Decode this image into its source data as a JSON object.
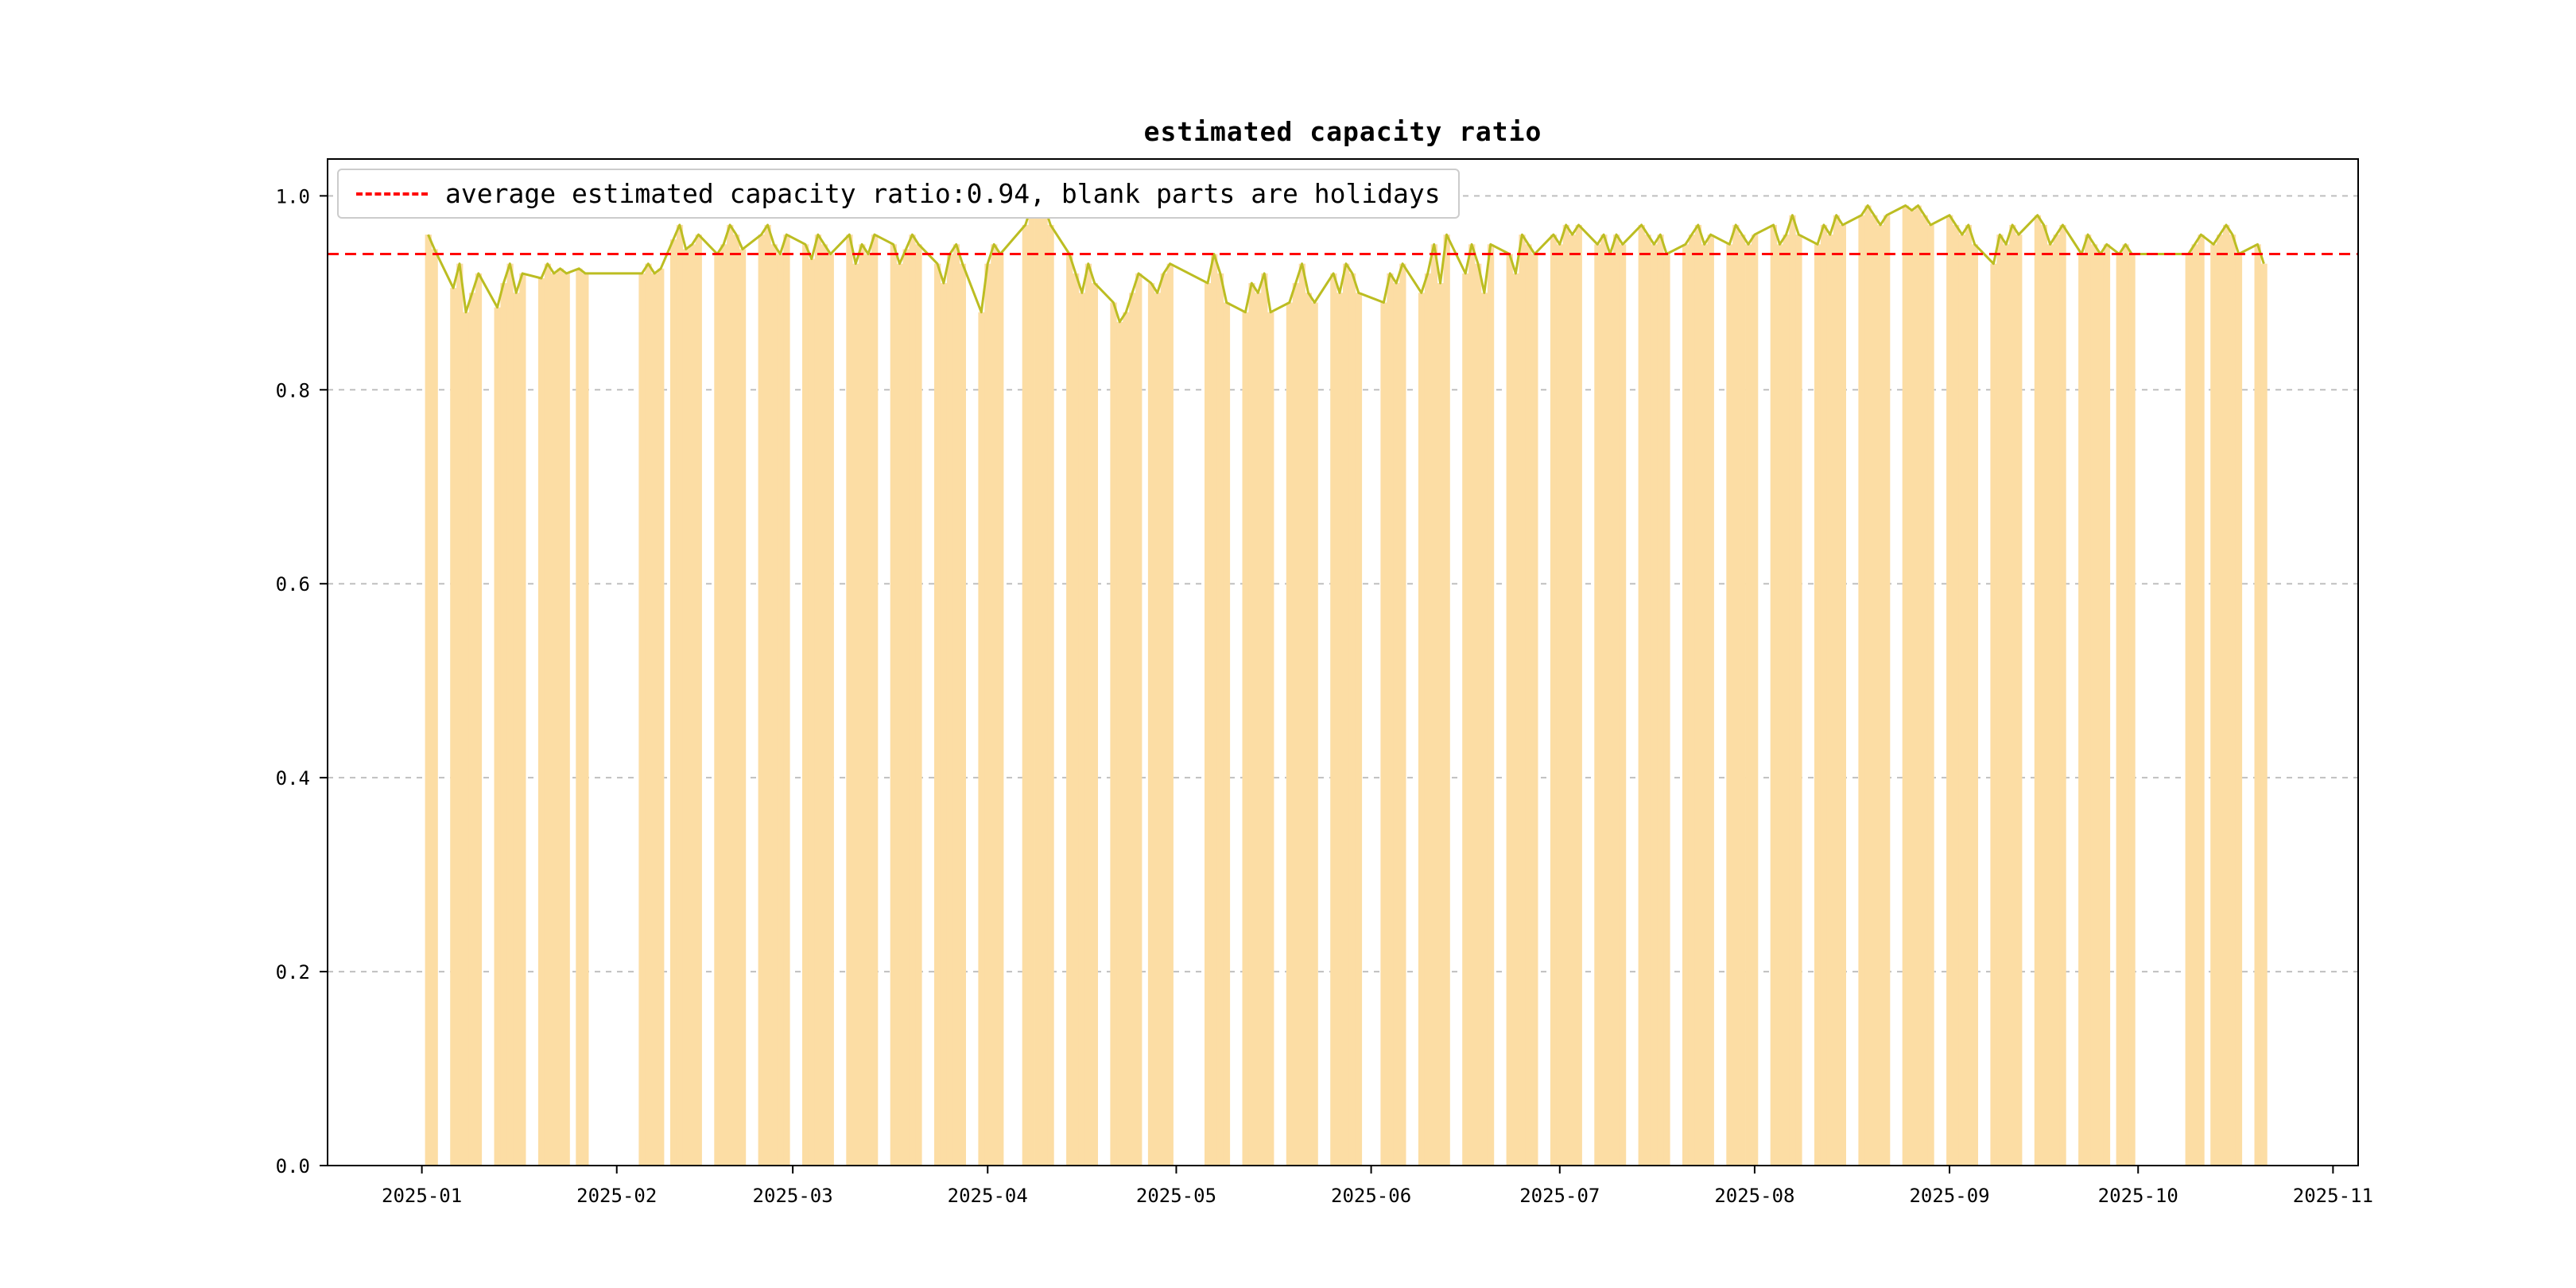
{
  "chart_data": {
    "type": "bar+line",
    "title": "estimated capacity ratio",
    "xlabel": "",
    "ylabel": "",
    "legend_label": "average estimated capacity ratio:0.94, blank parts are holidays",
    "legend_position": "upper-left",
    "average_value": 0.94,
    "grid": "horizontal-dashed",
    "x_domain": [
      "2024-12-17",
      "2025-11-05"
    ],
    "y_domain": [
      0,
      1.038
    ],
    "x_tick_labels": [
      "2025-01",
      "2025-02",
      "2025-03",
      "2025-04",
      "2025-05",
      "2025-06",
      "2025-07",
      "2025-08",
      "2025-09",
      "2025-10",
      "2025-11"
    ],
    "y_tick_values": [
      0,
      0.2,
      0.4,
      0.6,
      0.8,
      1.0
    ],
    "y_tick_labels": [
      "0.0",
      "0.2",
      "0.4",
      "0.6",
      "0.8",
      "1.0"
    ],
    "colors": {
      "bar": "#fcdda4",
      "line": "#bcbd22",
      "average": "#ff0000",
      "grid": "#bfbfbf",
      "frame": "#000000"
    },
    "days": [
      [
        "2025-01-02",
        0.96
      ],
      [
        "2025-01-03",
        0.945
      ],
      [
        "2025-01-06",
        0.905
      ],
      [
        "2025-01-07",
        0.93
      ],
      [
        "2025-01-08",
        0.88
      ],
      [
        "2025-01-09",
        0.9
      ],
      [
        "2025-01-10",
        0.92
      ],
      [
        "2025-01-13",
        0.885
      ],
      [
        "2025-01-14",
        0.91
      ],
      [
        "2025-01-15",
        0.93
      ],
      [
        "2025-01-16",
        0.9
      ],
      [
        "2025-01-17",
        0.92
      ],
      [
        "2025-01-20",
        0.915
      ],
      [
        "2025-01-21",
        0.93
      ],
      [
        "2025-01-22",
        0.92
      ],
      [
        "2025-01-23",
        0.925
      ],
      [
        "2025-01-24",
        0.92
      ],
      [
        "2025-01-26",
        0.925
      ],
      [
        "2025-01-27",
        0.92
      ],
      [
        "2025-02-05",
        0.92
      ],
      [
        "2025-02-06",
        0.93
      ],
      [
        "2025-02-07",
        0.92
      ],
      [
        "2025-02-08",
        0.925
      ],
      [
        "2025-02-10",
        0.955
      ],
      [
        "2025-02-11",
        0.97
      ],
      [
        "2025-02-12",
        0.945
      ],
      [
        "2025-02-13",
        0.95
      ],
      [
        "2025-02-14",
        0.96
      ],
      [
        "2025-02-17",
        0.94
      ],
      [
        "2025-02-18",
        0.95
      ],
      [
        "2025-02-19",
        0.97
      ],
      [
        "2025-02-20",
        0.96
      ],
      [
        "2025-02-21",
        0.945
      ],
      [
        "2025-02-24",
        0.96
      ],
      [
        "2025-02-25",
        0.97
      ],
      [
        "2025-02-26",
        0.95
      ],
      [
        "2025-02-27",
        0.94
      ],
      [
        "2025-02-28",
        0.96
      ],
      [
        "2025-03-03",
        0.95
      ],
      [
        "2025-03-04",
        0.935
      ],
      [
        "2025-03-05",
        0.96
      ],
      [
        "2025-03-06",
        0.95
      ],
      [
        "2025-03-07",
        0.94
      ],
      [
        "2025-03-10",
        0.96
      ],
      [
        "2025-03-11",
        0.93
      ],
      [
        "2025-03-12",
        0.95
      ],
      [
        "2025-03-13",
        0.94
      ],
      [
        "2025-03-14",
        0.96
      ],
      [
        "2025-03-17",
        0.95
      ],
      [
        "2025-03-18",
        0.93
      ],
      [
        "2025-03-19",
        0.945
      ],
      [
        "2025-03-20",
        0.96
      ],
      [
        "2025-03-21",
        0.95
      ],
      [
        "2025-03-24",
        0.93
      ],
      [
        "2025-03-25",
        0.91
      ],
      [
        "2025-03-26",
        0.94
      ],
      [
        "2025-03-27",
        0.95
      ],
      [
        "2025-03-28",
        0.93
      ],
      [
        "2025-03-31",
        0.88
      ],
      [
        "2025-04-01",
        0.93
      ],
      [
        "2025-04-02",
        0.95
      ],
      [
        "2025-04-03",
        0.94
      ],
      [
        "2025-04-07",
        0.97
      ],
      [
        "2025-04-08",
        0.99
      ],
      [
        "2025-04-09",
        0.985
      ],
      [
        "2025-04-10",
        0.99
      ],
      [
        "2025-04-11",
        0.97
      ],
      [
        "2025-04-14",
        0.94
      ],
      [
        "2025-04-15",
        0.92
      ],
      [
        "2025-04-16",
        0.9
      ],
      [
        "2025-04-17",
        0.93
      ],
      [
        "2025-04-18",
        0.91
      ],
      [
        "2025-04-21",
        0.89
      ],
      [
        "2025-04-22",
        0.87
      ],
      [
        "2025-04-23",
        0.88
      ],
      [
        "2025-04-24",
        0.9
      ],
      [
        "2025-04-25",
        0.92
      ],
      [
        "2025-04-27",
        0.91
      ],
      [
        "2025-04-28",
        0.9
      ],
      [
        "2025-04-29",
        0.92
      ],
      [
        "2025-04-30",
        0.93
      ],
      [
        "2025-05-06",
        0.91
      ],
      [
        "2025-05-07",
        0.94
      ],
      [
        "2025-05-08",
        0.92
      ],
      [
        "2025-05-09",
        0.89
      ],
      [
        "2025-05-12",
        0.88
      ],
      [
        "2025-05-13",
        0.91
      ],
      [
        "2025-05-14",
        0.9
      ],
      [
        "2025-05-15",
        0.92
      ],
      [
        "2025-05-16",
        0.88
      ],
      [
        "2025-05-19",
        0.89
      ],
      [
        "2025-05-20",
        0.91
      ],
      [
        "2025-05-21",
        0.93
      ],
      [
        "2025-05-22",
        0.9
      ],
      [
        "2025-05-23",
        0.89
      ],
      [
        "2025-05-26",
        0.92
      ],
      [
        "2025-05-27",
        0.9
      ],
      [
        "2025-05-28",
        0.93
      ],
      [
        "2025-05-29",
        0.92
      ],
      [
        "2025-05-30",
        0.9
      ],
      [
        "2025-06-03",
        0.89
      ],
      [
        "2025-06-04",
        0.92
      ],
      [
        "2025-06-05",
        0.91
      ],
      [
        "2025-06-06",
        0.93
      ],
      [
        "2025-06-09",
        0.9
      ],
      [
        "2025-06-10",
        0.92
      ],
      [
        "2025-06-11",
        0.95
      ],
      [
        "2025-06-12",
        0.91
      ],
      [
        "2025-06-13",
        0.96
      ],
      [
        "2025-06-16",
        0.92
      ],
      [
        "2025-06-17",
        0.95
      ],
      [
        "2025-06-18",
        0.93
      ],
      [
        "2025-06-19",
        0.9
      ],
      [
        "2025-06-20",
        0.95
      ],
      [
        "2025-06-23",
        0.94
      ],
      [
        "2025-06-24",
        0.92
      ],
      [
        "2025-06-25",
        0.96
      ],
      [
        "2025-06-26",
        0.95
      ],
      [
        "2025-06-27",
        0.94
      ],
      [
        "2025-06-30",
        0.96
      ],
      [
        "2025-07-01",
        0.95
      ],
      [
        "2025-07-02",
        0.97
      ],
      [
        "2025-07-03",
        0.96
      ],
      [
        "2025-07-04",
        0.97
      ],
      [
        "2025-07-07",
        0.95
      ],
      [
        "2025-07-08",
        0.96
      ],
      [
        "2025-07-09",
        0.94
      ],
      [
        "2025-07-10",
        0.96
      ],
      [
        "2025-07-11",
        0.95
      ],
      [
        "2025-07-14",
        0.97
      ],
      [
        "2025-07-15",
        0.96
      ],
      [
        "2025-07-16",
        0.95
      ],
      [
        "2025-07-17",
        0.96
      ],
      [
        "2025-07-18",
        0.94
      ],
      [
        "2025-07-21",
        0.95
      ],
      [
        "2025-07-22",
        0.96
      ],
      [
        "2025-07-23",
        0.97
      ],
      [
        "2025-07-24",
        0.95
      ],
      [
        "2025-07-25",
        0.96
      ],
      [
        "2025-07-28",
        0.95
      ],
      [
        "2025-07-29",
        0.97
      ],
      [
        "2025-07-30",
        0.96
      ],
      [
        "2025-07-31",
        0.95
      ],
      [
        "2025-08-01",
        0.96
      ],
      [
        "2025-08-04",
        0.97
      ],
      [
        "2025-08-05",
        0.95
      ],
      [
        "2025-08-06",
        0.96
      ],
      [
        "2025-08-07",
        0.98
      ],
      [
        "2025-08-08",
        0.96
      ],
      [
        "2025-08-11",
        0.95
      ],
      [
        "2025-08-12",
        0.97
      ],
      [
        "2025-08-13",
        0.96
      ],
      [
        "2025-08-14",
        0.98
      ],
      [
        "2025-08-15",
        0.97
      ],
      [
        "2025-08-18",
        0.98
      ],
      [
        "2025-08-19",
        0.99
      ],
      [
        "2025-08-20",
        0.98
      ],
      [
        "2025-08-21",
        0.97
      ],
      [
        "2025-08-22",
        0.98
      ],
      [
        "2025-08-25",
        0.99
      ],
      [
        "2025-08-26",
        0.985
      ],
      [
        "2025-08-27",
        0.99
      ],
      [
        "2025-08-28",
        0.98
      ],
      [
        "2025-08-29",
        0.97
      ],
      [
        "2025-09-01",
        0.98
      ],
      [
        "2025-09-02",
        0.97
      ],
      [
        "2025-09-03",
        0.96
      ],
      [
        "2025-09-04",
        0.97
      ],
      [
        "2025-09-05",
        0.95
      ],
      [
        "2025-09-08",
        0.93
      ],
      [
        "2025-09-09",
        0.96
      ],
      [
        "2025-09-10",
        0.95
      ],
      [
        "2025-09-11",
        0.97
      ],
      [
        "2025-09-12",
        0.96
      ],
      [
        "2025-09-15",
        0.98
      ],
      [
        "2025-09-16",
        0.97
      ],
      [
        "2025-09-17",
        0.95
      ],
      [
        "2025-09-18",
        0.96
      ],
      [
        "2025-09-19",
        0.97
      ],
      [
        "2025-09-22",
        0.94
      ],
      [
        "2025-09-23",
        0.96
      ],
      [
        "2025-09-24",
        0.95
      ],
      [
        "2025-09-25",
        0.94
      ],
      [
        "2025-09-26",
        0.95
      ],
      [
        "2025-09-28",
        0.94
      ],
      [
        "2025-09-29",
        0.95
      ],
      [
        "2025-09-30",
        0.94
      ],
      [
        "2025-10-09",
        0.94
      ],
      [
        "2025-10-10",
        0.95
      ],
      [
        "2025-10-11",
        0.96
      ],
      [
        "2025-10-13",
        0.95
      ],
      [
        "2025-10-14",
        0.96
      ],
      [
        "2025-10-15",
        0.97
      ],
      [
        "2025-10-16",
        0.96
      ],
      [
        "2025-10-17",
        0.94
      ],
      [
        "2025-10-20",
        0.95
      ],
      [
        "2025-10-21",
        0.93
      ]
    ]
  }
}
